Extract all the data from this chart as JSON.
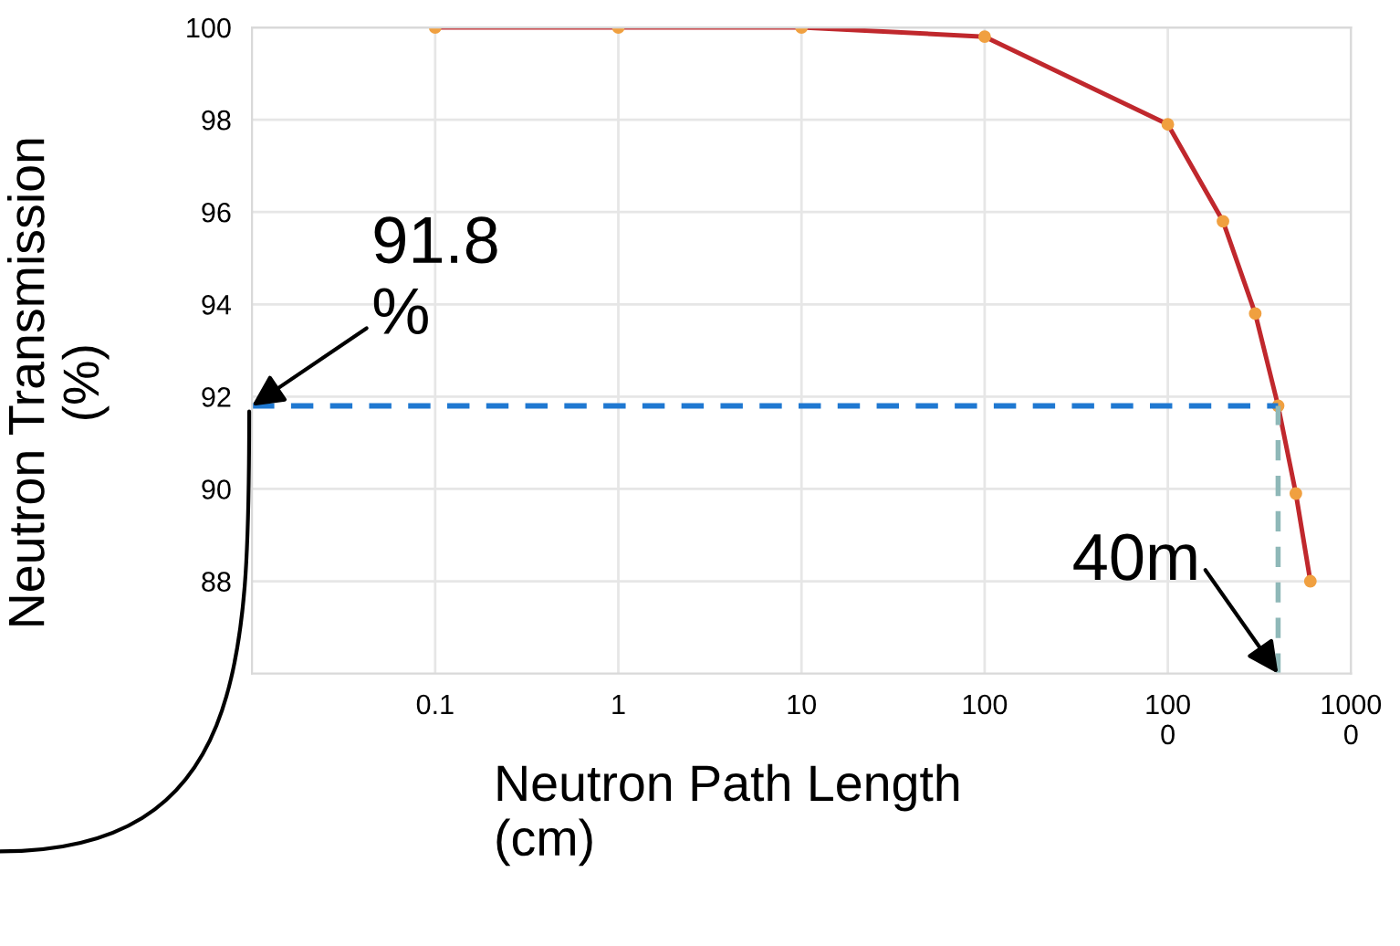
{
  "chart_data": {
    "type": "line",
    "xlabel": "Neutron Path Length\n(cm)",
    "ylabel": "Neutron Transmission\n(%)",
    "x": [
      0.1,
      1,
      10,
      100,
      1000,
      2000,
      3000,
      4000,
      5000,
      6000
    ],
    "series": [
      {
        "color": "#c0282d",
        "values": [
          100,
          100,
          100,
          99.8,
          97.9,
          95.8,
          93.8,
          91.8,
          89.9,
          88.0
        ]
      }
    ],
    "marker": "circle",
    "log": "x",
    "xlim": [
      0.01,
      10000
    ],
    "xticks": [
      0.1,
      1,
      10,
      100,
      {
        "value": 1000,
        "label": "100\n0"
      },
      {
        "value": 10000,
        "label": "1000\n0"
      }
    ],
    "ylim": [
      86,
      100
    ],
    "yticks": [
      88,
      90,
      92,
      94,
      96,
      98,
      100
    ],
    "grid": true,
    "ref_lines": [
      {
        "axis": "y",
        "value": 91.8,
        "label": "91.8\n%",
        "color": "#1f78d1",
        "line_style": "dashed"
      },
      {
        "axis": "x",
        "value": 4000,
        "label": "40m",
        "color": "#8fb8b8",
        "line_style": "dashed"
      }
    ]
  }
}
